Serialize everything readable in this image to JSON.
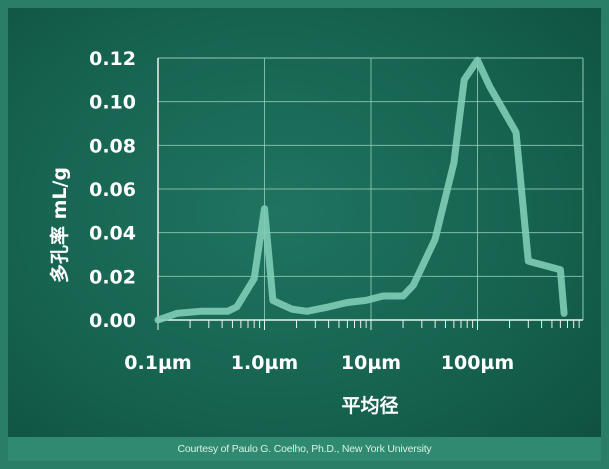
{
  "chart_data": {
    "type": "line",
    "xlabel": "平均径",
    "ylabel": "多孔率 mL/g",
    "x_scale": "log",
    "xlim": [
      0.1,
      1000
    ],
    "ylim": [
      0,
      0.12
    ],
    "x_tick_labels": [
      "0.1µm",
      "1.0µm",
      "10µm",
      "100µm"
    ],
    "y_tick_labels": [
      "0.00",
      "0.02",
      "0.04",
      "0.06",
      "0.08",
      "0.10",
      "0.12"
    ],
    "grid": true,
    "series": [
      {
        "color": "#7fcdb6",
        "x": [
          0.1,
          0.15,
          0.25,
          0.35,
          0.45,
          0.55,
          0.8,
          1.0,
          1.2,
          1.8,
          2.5,
          4,
          6,
          9,
          13,
          20,
          25,
          40,
          60,
          75,
          100,
          130,
          230,
          300,
          600,
          650
        ],
        "y": [
          0.0,
          0.003,
          0.004,
          0.004,
          0.004,
          0.006,
          0.019,
          0.051,
          0.009,
          0.005,
          0.004,
          0.006,
          0.008,
          0.009,
          0.011,
          0.011,
          0.016,
          0.037,
          0.072,
          0.11,
          0.119,
          0.107,
          0.086,
          0.027,
          0.023,
          0.003
        ]
      }
    ]
  },
  "footer": {
    "credit": "Courtesy of Paulo G. Coelho, Ph.D., New York University"
  }
}
